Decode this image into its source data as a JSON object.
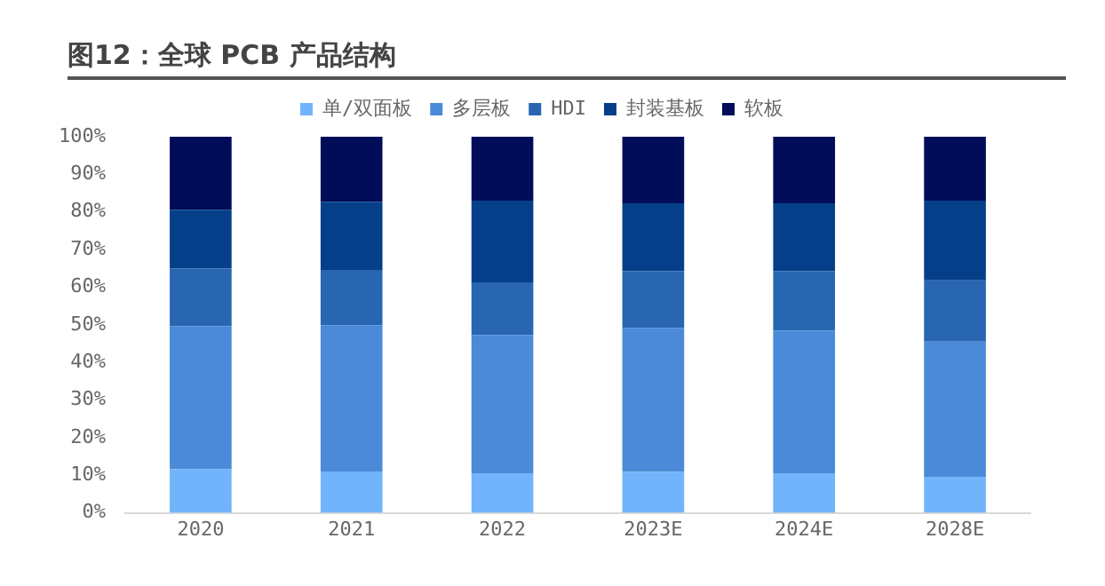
{
  "chart_data": {
    "type": "bar",
    "title": "图12：全球 PCB 产品结构",
    "stacked": true,
    "categories": [
      "2020",
      "2021",
      "2022",
      "2023E",
      "2024E",
      "2028E"
    ],
    "series": [
      {
        "name": "单/双面板",
        "color": "#71b4fb",
        "values": [
          11.6,
          11,
          10.5,
          10.9,
          10.5,
          9.6
        ]
      },
      {
        "name": "多层板",
        "color": "#4a8ad8",
        "values": [
          38,
          38.9,
          36.8,
          38.3,
          38,
          35.9
        ]
      },
      {
        "name": "HDI",
        "color": "#2866b2",
        "values": [
          15.4,
          14.7,
          14,
          15.1,
          15.8,
          16.3
        ]
      },
      {
        "name": "封装基板",
        "color": "#053f8a",
        "values": [
          15.6,
          18.1,
          21.7,
          18,
          18,
          21.2
        ]
      },
      {
        "name": "软板",
        "color": "#010d58",
        "values": [
          19.4,
          17.3,
          17,
          17.7,
          17.7,
          17
        ]
      }
    ],
    "ylim": [
      0,
      100
    ],
    "yticks": [
      {
        "value": 0,
        "label": "0%"
      },
      {
        "value": 10,
        "label": "10%"
      },
      {
        "value": 20,
        "label": "20%"
      },
      {
        "value": 30,
        "label": "30%"
      },
      {
        "value": 40,
        "label": "40%"
      },
      {
        "value": 50,
        "label": "50%"
      },
      {
        "value": 60,
        "label": "60%"
      },
      {
        "value": 70,
        "label": "70%"
      },
      {
        "value": 80,
        "label": "80%"
      },
      {
        "value": 90,
        "label": "90%"
      },
      {
        "value": 100,
        "label": "100%"
      }
    ],
    "grid": false,
    "legend": "top"
  }
}
